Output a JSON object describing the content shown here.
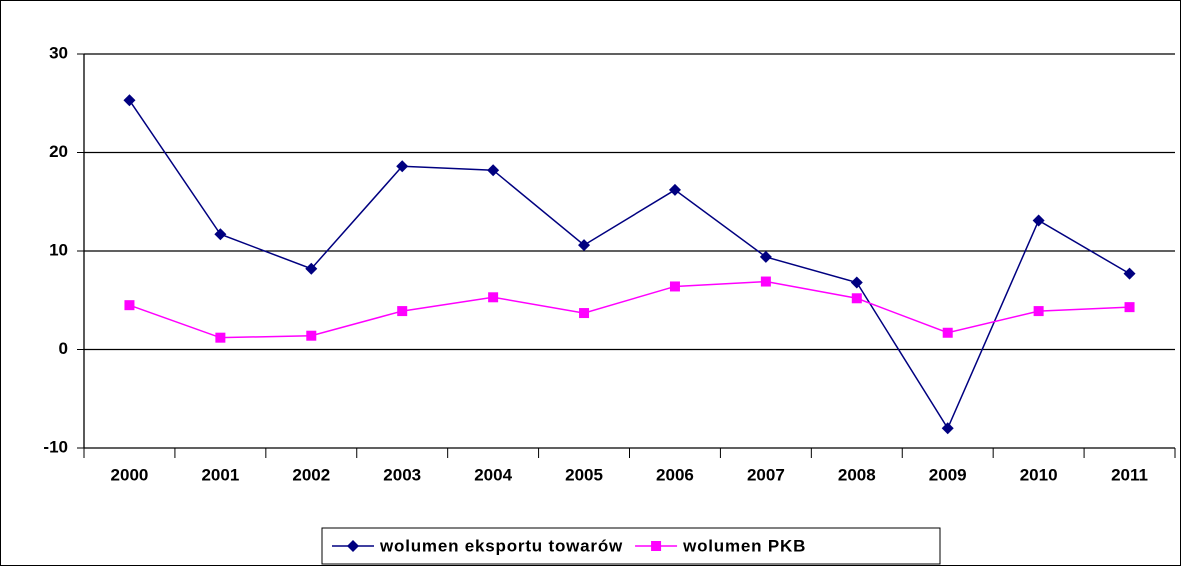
{
  "chart_data": {
    "type": "line",
    "categories": [
      "2000",
      "2001",
      "2002",
      "2003",
      "2004",
      "2005",
      "2006",
      "2007",
      "2008",
      "2009",
      "2010",
      "2011"
    ],
    "series": [
      {
        "name": "wolumen eksportu towarów",
        "color": "#000080",
        "marker": "diamond",
        "values": [
          25.3,
          11.7,
          8.2,
          18.6,
          18.2,
          10.6,
          16.2,
          9.4,
          6.8,
          -8.0,
          13.1,
          7.7
        ]
      },
      {
        "name": "wolumen PKB",
        "color": "#ff00ff",
        "marker": "square",
        "values": [
          4.5,
          1.2,
          1.4,
          3.9,
          5.3,
          3.7,
          6.4,
          6.9,
          5.2,
          1.7,
          3.9,
          4.3
        ]
      }
    ],
    "ylim": [
      -10,
      30
    ],
    "yticks": [
      -10,
      0,
      10,
      20,
      30
    ],
    "grid": true,
    "legend": "bottom"
  }
}
